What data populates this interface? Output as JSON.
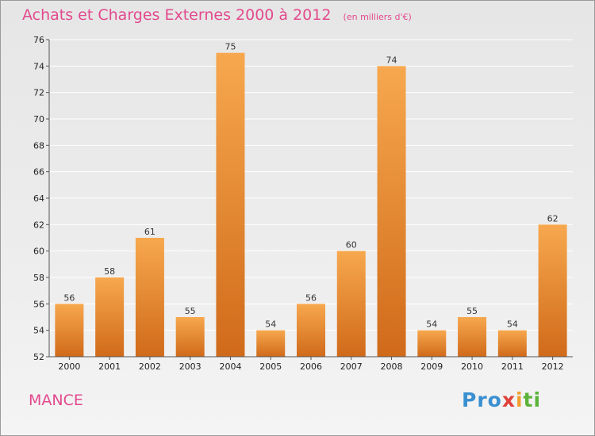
{
  "header": {
    "title": "Achats et Charges Externes 2000 à 2012",
    "subtitle": "(en milliers d'€)"
  },
  "footer": {
    "city": "MANCE",
    "logo": {
      "p1": "Pro",
      "p2": "x",
      "p3": "i",
      "p4": "ti"
    }
  },
  "colors": {
    "bar_light": "#f7a84e",
    "bar_dark": "#d06a1a",
    "title": "#e24a8d"
  },
  "chart_data": {
    "type": "bar",
    "title": "Achats et Charges Externes 2000 à 2012",
    "subtitle": "(en milliers d'€)",
    "xlabel": "",
    "ylabel": "",
    "categories": [
      "2000",
      "2001",
      "2002",
      "2003",
      "2004",
      "2005",
      "2006",
      "2007",
      "2008",
      "2009",
      "2010",
      "2011",
      "2012"
    ],
    "values": [
      56,
      58,
      61,
      55,
      75,
      54,
      56,
      60,
      74,
      54,
      55,
      54,
      62
    ],
    "ylim": [
      52,
      76
    ],
    "yticks": [
      52,
      54,
      56,
      58,
      60,
      62,
      64,
      66,
      68,
      70,
      72,
      74,
      76
    ],
    "grid": true,
    "legend": "none"
  }
}
